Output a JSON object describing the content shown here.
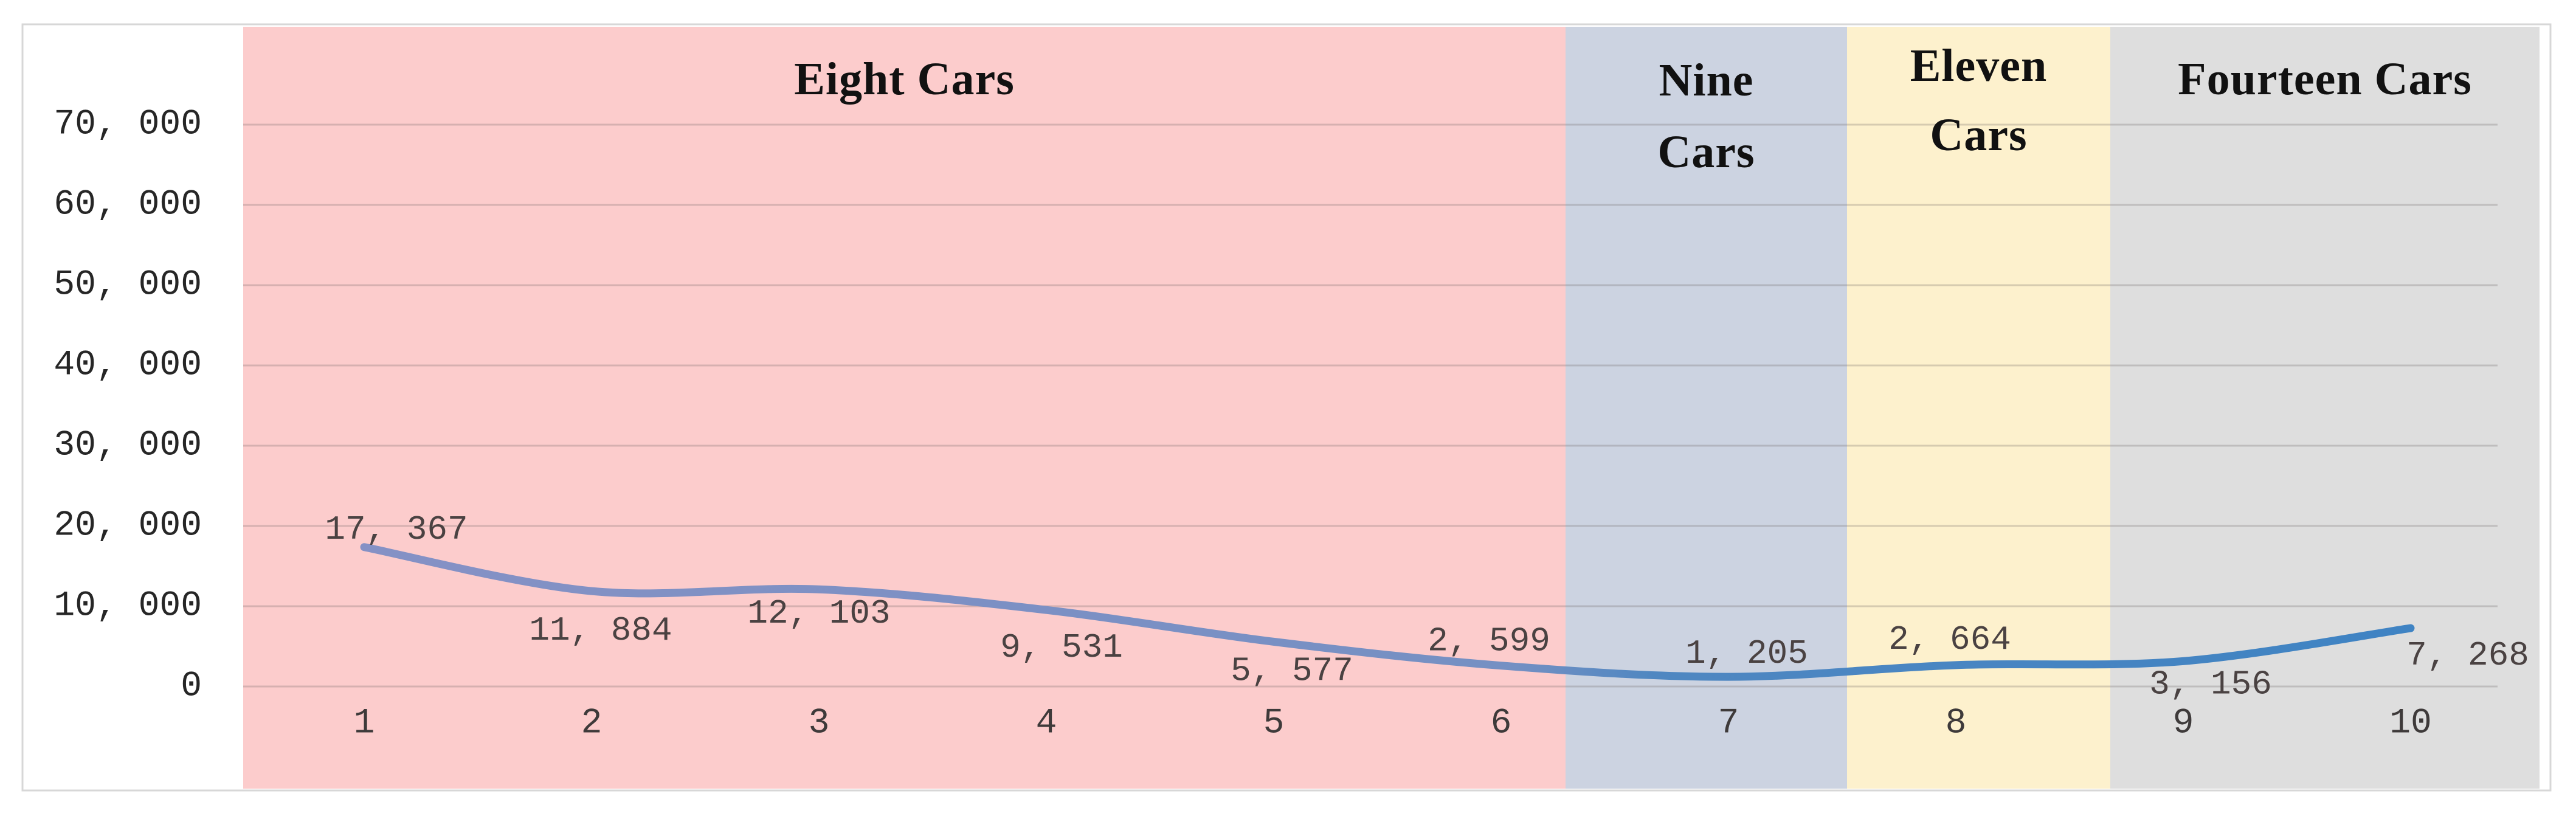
{
  "chart_data": {
    "type": "line",
    "title": "",
    "categories": [
      "1",
      "2",
      "3",
      "4",
      "5",
      "6",
      "7",
      "8",
      "9",
      "10"
    ],
    "series": [
      {
        "name": "cars-series",
        "values": [
          17367,
          11884,
          12103,
          9531,
          5577,
          2599,
          1205,
          2664,
          3156,
          7268
        ],
        "data_labels": [
          "17, 367",
          "11, 884",
          "12, 103",
          "9, 531",
          "5, 577",
          "2, 599",
          "1, 205",
          "2, 664",
          "3, 156",
          "7, 268"
        ]
      }
    ],
    "xlabel": "",
    "ylabel": "",
    "y_axis": {
      "min": 0,
      "max": 70000,
      "tick_interval": 10000,
      "ticks": [
        {
          "value": 0,
          "label": "0"
        },
        {
          "value": 10000,
          "label": "10, 000"
        },
        {
          "value": 20000,
          "label": "20, 000"
        },
        {
          "value": 30000,
          "label": "30, 000"
        },
        {
          "value": 40000,
          "label": "40, 000"
        },
        {
          "value": 50000,
          "label": "50, 000"
        },
        {
          "value": 60000,
          "label": "60, 000"
        },
        {
          "value": 70000,
          "label": "70, 000"
        }
      ]
    },
    "grid": true,
    "legend": "none",
    "smoothed_line": true,
    "bands": [
      {
        "label": "Eight Cars",
        "color": "#fccccc",
        "from_category": "1",
        "to_category": "6"
      },
      {
        "label": "Nine Cars",
        "color": "#ccd3e1",
        "from_category": "7",
        "to_category": "7"
      },
      {
        "label": "Eleven Cars",
        "color": "#fdf1cd",
        "from_category": "8",
        "to_category": "8"
      },
      {
        "label": "Fourteen Cars",
        "color": "#dedede",
        "from_category": "9",
        "to_category": "10"
      }
    ],
    "colors": {
      "series_line": "#4d82c2",
      "series_line_on_pink": "#8591c5",
      "data_label_text": "#4a4242",
      "x_tick_text": "#3e3a3a",
      "y_tick_text": "#262626",
      "band_title_text": "#111111",
      "chart_border": "#d7d7d7",
      "gridline": "rgba(100,92,92,0.25)",
      "background": "#ffffff"
    }
  }
}
